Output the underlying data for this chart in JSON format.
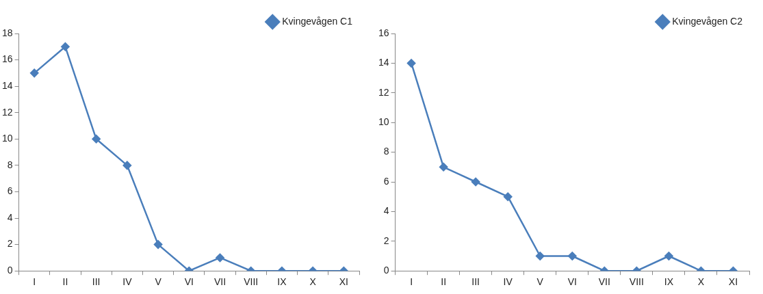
{
  "chart_data": [
    {
      "type": "line",
      "categories": [
        "I",
        "II",
        "III",
        "IV",
        "V",
        "VI",
        "VII",
        "VIII",
        "IX",
        "X",
        "XI"
      ],
      "series": [
        {
          "name": "Kvingevågen C1",
          "color": "#4a7ebb",
          "values": [
            15,
            17,
            10,
            8,
            2,
            0,
            1,
            0,
            0,
            0,
            0
          ]
        }
      ],
      "ylim": [
        0,
        18
      ],
      "yticks": [
        0,
        2,
        4,
        6,
        8,
        10,
        12,
        14,
        16,
        18
      ],
      "grid": false,
      "legend": "top right",
      "marker": "diamond",
      "line_style": "solid"
    },
    {
      "type": "line",
      "categories": [
        "I",
        "II",
        "III",
        "IV",
        "V",
        "VI",
        "VII",
        "VIII",
        "IX",
        "X",
        "XI"
      ],
      "series": [
        {
          "name": "Kvingevågen C2",
          "color": "#4a7ebb",
          "values": [
            14,
            7,
            6,
            5,
            1,
            1,
            0,
            0,
            1,
            0,
            0
          ]
        }
      ],
      "ylim": [
        0,
        16
      ],
      "yticks": [
        0,
        2,
        4,
        6,
        8,
        10,
        12,
        14,
        16
      ],
      "grid": false,
      "legend": "top right",
      "marker": "diamond",
      "line_style": "solid"
    }
  ]
}
